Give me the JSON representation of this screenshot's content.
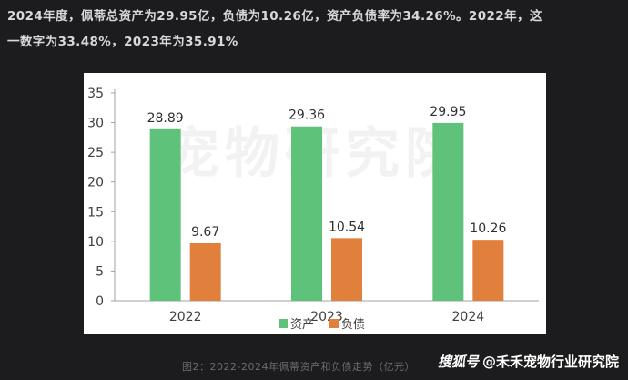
{
  "article": {
    "line1": "2024年度，佩蒂总资产为29.95亿，负债为10.26亿，资产负债率为34.26%。2022年，这",
    "line2": "一数字为33.48%，2023年为35.91%"
  },
  "chart": {
    "watermark": "宠物研究院",
    "caption": "图2：2022-2024年佩蒂资产和负债走势（亿元）"
  },
  "source": {
    "logo": "搜狐号",
    "handle": "@禾禾宠物行业研究院"
  },
  "chart_data": {
    "type": "bar",
    "categories": [
      "2022",
      "2023",
      "2024"
    ],
    "series": [
      {
        "name": "资产",
        "values": [
          28.89,
          29.36,
          29.95
        ],
        "color": "#5ec27b"
      },
      {
        "name": "负债",
        "values": [
          9.67,
          10.54,
          10.26
        ],
        "color": "#e0803c"
      }
    ],
    "ylim": [
      0,
      35
    ],
    "yticks": [
      0,
      5,
      10,
      15,
      20,
      25,
      30,
      35
    ],
    "legend": "bottom",
    "grid": false
  }
}
